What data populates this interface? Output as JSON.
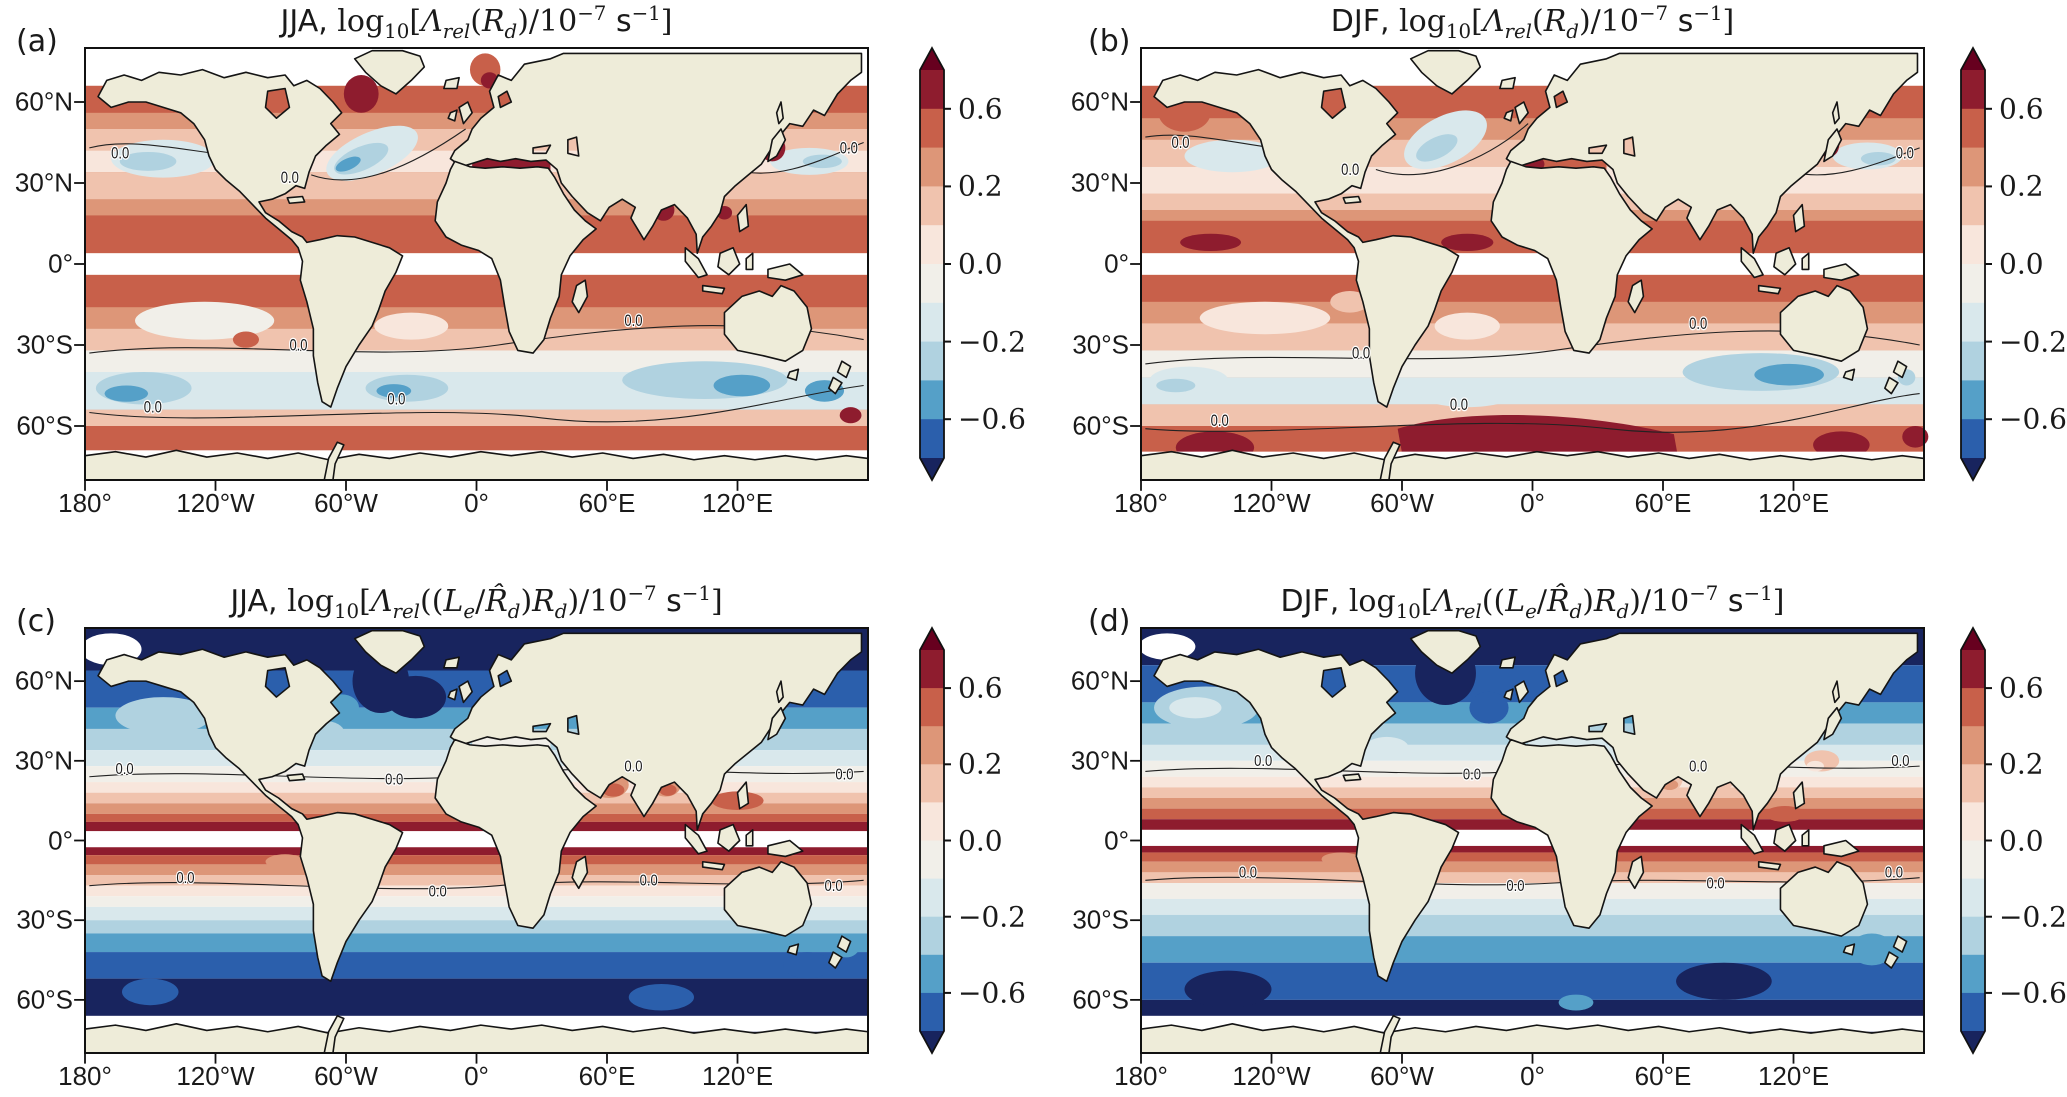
{
  "figure": {
    "contour_label": "0.0",
    "land_color": "#eeecd9",
    "mask_color": "#ffffff",
    "panels": [
      {
        "label": "(a)",
        "season": "JJA",
        "title_text": "JJA, log10[Λrel(Rd)/10−7 s−1]",
        "title_html": "<span class='sn'>JJA, </span>log<sub>10</sub>[<i>Λ</i><sub><i>rel</i></sub>(<i>R</i><sub><i>d</i></sub>)/10<sup>−7</sup> <span class='sn'>s</span><sup>−1</sup>]"
      },
      {
        "label": "(b)",
        "season": "DJF",
        "title_text": "DJF, log10[Λrel(Rd)/10−7 s−1]",
        "title_html": "<span class='sn'>DJF, </span>log<sub>10</sub>[<i>Λ</i><sub><i>rel</i></sub>(<i>R</i><sub><i>d</i></sub>)/10<sup>−7</sup> <span class='sn'>s</span><sup>−1</sup>]"
      },
      {
        "label": "(c)",
        "season": "JJA",
        "title_text": "JJA, log10[Λrel((Le/R̂d)Rd)/10−7 s−1]",
        "title_html": "<span class='sn'>JJA, </span>log<sub>10</sub>[<i>Λ</i><sub><i>rel</i></sub>((<i>L</i><sub><i>e</i></sub>/<i>R̂</i><sub><i>d</i></sub>)<i>R</i><sub><i>d</i></sub>)/10<sup>−7</sup> <span class='sn'>s</span><sup>−1</sup>]"
      },
      {
        "label": "(d)",
        "season": "DJF",
        "title_text": "DJF, log10[Λrel((Le/R̂d)Rd)/10−7 s−1]",
        "title_html": "<span class='sn'>DJF, </span>log<sub>10</sub>[<i>Λ</i><sub><i>rel</i></sub>((<i>L</i><sub><i>e</i></sub>/<i>R̂</i><sub><i>d</i></sub>)<i>R</i><sub><i>d</i></sub>)/10<sup>−7</sup> <span class='sn'>s</span><sup>−1</sup>]"
      }
    ],
    "axes": {
      "lon_ticks": [
        "180°",
        "120°W",
        "60°W",
        "0°",
        "60°E",
        "120°E"
      ],
      "lat_ticks": [
        "60°N",
        "30°N",
        "0°",
        "30°S",
        "60°S"
      ]
    },
    "colorbar_ticks": [
      "0.6",
      "0.2",
      "0.0",
      "−0.2",
      "−0.6"
    ]
  },
  "chart_data": {
    "type": "heatmap",
    "subtype": "filled-contour global ocean maps, equirectangular projection, 4 panels",
    "title": "Relative dissipation rate maps",
    "panels": [
      {
        "label": "(a)",
        "title": "JJA, log10[Lambda_rel(R_d)/10^-7 s^-1]",
        "pattern": "Mostly positive (0.1 to 0.6) over world oceans; negative pockets (-0.1 to -0.6) in NE Pacific 30-45N, western N Atlantic 30-45N, NW Pacific 35-40N, and 35-55S southern mid-latitudes (strongest -0.4 to -0.6 south of Australia and in SE Pacific); above 0.6 in Labrador Sea, Nordic Seas, Mediterranean, Sea of Japan, Bay of Bengal; equator band masked white; Arctic ocean masked white"
      },
      {
        "label": "(b)",
        "title": "DJF, log10[Lambda_rel(R_d)/10^-7 s^-1]",
        "pattern": "Like (a) but with >0.6 blobs in eastern equatorial Pacific and Atlantic near 5N, a large >0.6 region across the Atlantic/Indian sectors of the Southern Ocean 55-70S, weaker northern-hemisphere negative pockets, strong positive NE Pacific 45-60N"
      },
      {
        "label": "(c)",
        "title": "JJA, log10[Lambda_rel((L_e/R_d_hat)R_d)/10^-7 s^-1]",
        "zonal_profile": [
          [
            "60-80N",
            "< -0.8"
          ],
          [
            "45-60N",
            "-0.6 to -0.8"
          ],
          [
            "30-45N",
            "-0.2 to -0.6"
          ],
          [
            "18-30N",
            "-0.1 to 0.1"
          ],
          [
            "10-18N",
            "0.1 to 0.4"
          ],
          [
            "5-10N",
            "0.4 to 0.8"
          ],
          [
            "5N-5S",
            "masked"
          ],
          [
            "5-12S",
            "0.4 to 0.8"
          ],
          [
            "12-22S",
            "0.0 to 0.4"
          ],
          [
            "22-35S",
            "-0.1 to -0.4"
          ],
          [
            "35-50S",
            "-0.4 to -0.8"
          ],
          [
            "50-80S",
            "< -0.8"
          ]
        ],
        "regional": "Arabian Sea and Bay of Bengal positive 0.2-0.6; zero contour near 20N and 15S"
      },
      {
        "label": "(d)",
        "title": "DJF, log10[Lambda_rel((L_e/R_d_hat)R_d)/10^-7 s^-1]",
        "zonal_profile": [
          [
            "60-80N",
            "< -0.8"
          ],
          [
            "45-60N",
            "-0.6 to -0.8"
          ],
          [
            "30-45N",
            "-0.2 to -0.6"
          ],
          [
            "15-30N",
            "-0.1 to 0.1"
          ],
          [
            "8-15N",
            "0.1 to 0.4"
          ],
          [
            "3-8N",
            "0.6 to 0.8"
          ],
          [
            "3N-3S",
            "masked"
          ],
          [
            "3-8S",
            "0.4 to 0.8"
          ],
          [
            "8-20S",
            "0.0 to 0.4"
          ],
          [
            "20-32S",
            "-0.1 to -0.4"
          ],
          [
            "32-55S",
            "-0.4 to -0.8"
          ],
          [
            "55-80S",
            "< -0.8"
          ]
        ],
        "regional": "North Pacific central gyre lighter (-0.2 to -0.4); zero contour near 15N and 12S"
      }
    ],
    "axes": {
      "x_ticks": [
        "180°",
        "120°W",
        "60°W",
        "0°",
        "60°E",
        "120°E"
      ],
      "y_ticks": [
        "60°N",
        "30°N",
        "0°",
        "30°S",
        "60°S"
      ],
      "x_range_deg": [
        -180,
        180
      ],
      "y_range_deg": [
        -80,
        80
      ],
      "grid": false
    },
    "colorbar": {
      "ticks": [
        0.6,
        0.2,
        0.0,
        -0.2,
        -0.6
      ],
      "boundaries": [
        -0.8,
        -0.6,
        -0.4,
        -0.2,
        -0.1,
        0.0,
        0.1,
        0.2,
        0.4,
        0.6,
        0.8
      ],
      "segment_colors_top_to_bottom": [
        "#8e1c2e",
        "#c8604a",
        "#dd9678",
        "#f0c3ae",
        "#f8e6dc",
        "#f1efe9",
        "#d9e8ec",
        "#b0d2e0",
        "#55a0c8",
        "#2b5fac"
      ],
      "over_color": "#67001f",
      "under_color": "#18245e",
      "extend": "both",
      "legend_position": "right of each panel"
    },
    "contour_labeled_level": 0.0,
    "land_color": "#eeecd9",
    "equator_mask": "white band ±4° latitude"
  }
}
